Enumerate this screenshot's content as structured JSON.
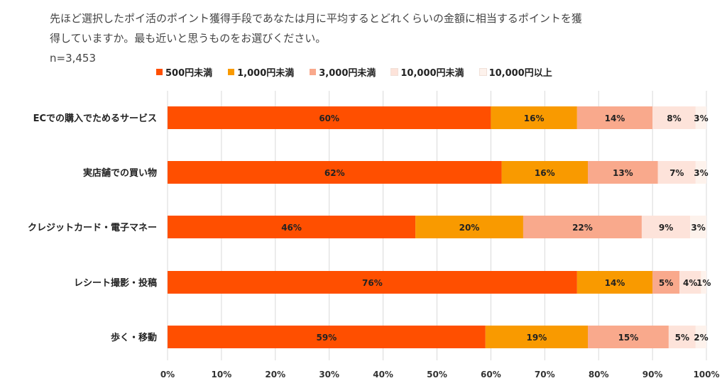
{
  "question_line1": "先ほど選択したポイ活のポイント獲得手段であなたは月に平均するとどれくらいの金額に相当するポイントを獲",
  "question_line2": "得していますか。最も近いと思うものをお選びください。",
  "sample_size": "n=3,453",
  "chart_data": {
    "type": "bar",
    "orientation": "horizontal",
    "stacked": "percent",
    "title": "",
    "xlabel": "",
    "ylabel": "",
    "categories": [
      "ECでの購入でためるサービス",
      "実店舗での買い物",
      "クレジットカード・電子マネー",
      "レシート撮影・投稿",
      "歩く・移動"
    ],
    "series": [
      {
        "name": "500円未満",
        "color": "#ff4f00",
        "values": [
          60,
          62,
          46,
          76,
          59
        ],
        "labels": [
          "60%",
          "62%",
          "46%",
          "76%",
          "59%"
        ]
      },
      {
        "name": "1,000円未満",
        "color": "#f99a00",
        "values": [
          16,
          16,
          20,
          14,
          19
        ],
        "labels": [
          "16%",
          "16%",
          "20%",
          "14%",
          "19%"
        ]
      },
      {
        "name": "3,000円未満",
        "color": "#f9a98c",
        "values": [
          14,
          13,
          22,
          5,
          15
        ],
        "labels": [
          "14%",
          "13%",
          "22%",
          "5%",
          "15%"
        ]
      },
      {
        "name": "10,000円未満",
        "color": "#fde3da",
        "values": [
          8,
          7,
          9,
          4,
          5
        ],
        "labels": [
          "8%",
          "7%",
          "9%",
          "4%",
          "5%"
        ]
      },
      {
        "name": "10,000円以上",
        "color": "#fdf2ec",
        "values": [
          3,
          3,
          3,
          1,
          2
        ],
        "labels": [
          "3%",
          "3%",
          "3%",
          "1%",
          "2%"
        ]
      }
    ],
    "xticks": [
      "0%",
      "10%",
      "20%",
      "30%",
      "40%",
      "50%",
      "60%",
      "70%",
      "80%",
      "90%",
      "100%"
    ],
    "xlim": [
      0,
      100
    ],
    "grid": true,
    "legend_position": "top"
  }
}
